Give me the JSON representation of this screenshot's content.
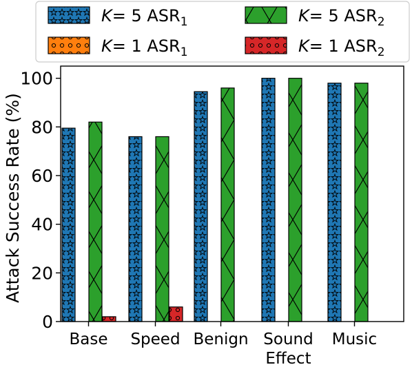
{
  "chart_data": {
    "type": "bar",
    "categories": [
      [
        "Base"
      ],
      [
        "Speed"
      ],
      [
        "Benign"
      ],
      [
        "Sound",
        "Effect"
      ],
      [
        "Music"
      ]
    ],
    "series": [
      {
        "key": "k5asr1",
        "label_prefix": "K = 5 ASR",
        "label_sub": "1",
        "values": [
          79.5,
          76,
          94.5,
          100,
          98
        ],
        "color": "#1f77b4",
        "pattern": "stars"
      },
      {
        "key": "k5asr2",
        "label_prefix": "K = 5 ASR",
        "label_sub": "2",
        "values": [
          82,
          76,
          96,
          100,
          98
        ],
        "color": "#2ca02c",
        "pattern": "cross"
      },
      {
        "key": "k1asr1",
        "label_prefix": "K = 1 ASR",
        "label_sub": "1",
        "values": [
          0,
          0,
          0,
          0,
          0
        ],
        "color": "#ff7f0e",
        "pattern": "circles"
      },
      {
        "key": "k1asr2",
        "label_prefix": "K = 1 ASR",
        "label_sub": "2",
        "values": [
          2,
          6,
          0,
          0,
          0
        ],
        "color": "#d62728",
        "pattern": "circles"
      }
    ],
    "ylabel": "Attack Success Rate (%)",
    "xlabel": "",
    "ylim": [
      0,
      105
    ],
    "yticks": [
      0,
      20,
      40,
      60,
      80,
      100
    ],
    "legend_position": "top",
    "grid": false
  }
}
